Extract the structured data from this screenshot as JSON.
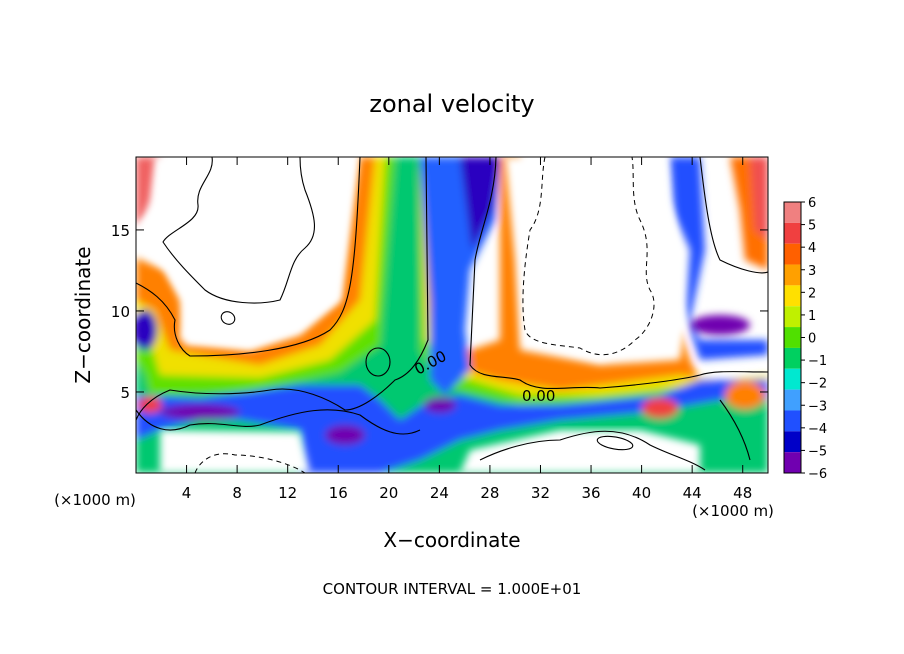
{
  "chart_data": {
    "type": "heatmap",
    "title": "zonal velocity",
    "xlabel": "X−coordinate",
    "ylabel": "Z−coordinate",
    "x_unit_left": "(×1000 m)",
    "x_unit_right": "(×1000 m)",
    "footer": "CONTOUR INTERVAL = 1.000E+01",
    "xlim": [
      0,
      50
    ],
    "ylim": [
      0,
      19.5
    ],
    "x_ticks": [
      4,
      8,
      12,
      16,
      20,
      24,
      28,
      32,
      36,
      40,
      44,
      48
    ],
    "y_ticks": [
      5,
      10,
      15
    ],
    "colorbar_ticks": [
      6,
      5,
      4,
      3,
      2,
      1,
      0,
      -1,
      -2,
      -3,
      -4,
      -5,
      -6
    ],
    "colorbar_colors": [
      "#f08080",
      "#f04040",
      "#ff6000",
      "#ffa000",
      "#ffe000",
      "#c0f000",
      "#50e000",
      "#00d060",
      "#00e8d0",
      "#40a0ff",
      "#2050ff",
      "#0000c8",
      "#7000b0"
    ],
    "contour_labels": [
      "0.00",
      "0.00"
    ]
  }
}
